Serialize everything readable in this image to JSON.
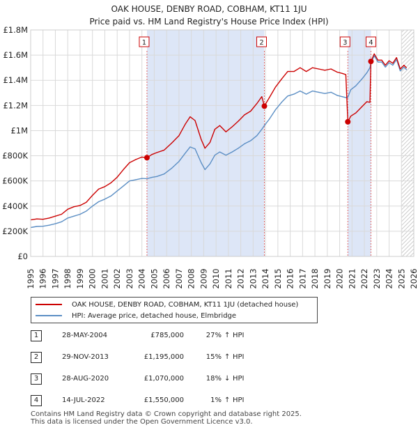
{
  "chart_data": {
    "type": "line",
    "title": "OAK HOUSE, DENBY ROAD, COBHAM, KT11 1JU",
    "subtitle": "Price paid vs. HM Land Registry's House Price Index (HPI)",
    "xlim": [
      1995,
      2026
    ],
    "ylim": [
      0,
      1800000
    ],
    "x_ticks": [
      "1995",
      "1996",
      "1997",
      "1998",
      "1999",
      "2000",
      "2001",
      "2002",
      "2003",
      "2004",
      "2005",
      "2006",
      "2007",
      "2008",
      "2009",
      "2010",
      "2011",
      "2012",
      "2013",
      "2014",
      "2015",
      "2016",
      "2017",
      "2018",
      "2019",
      "2020",
      "2021",
      "2022",
      "2023",
      "2024",
      "2025",
      "2026"
    ],
    "y_ticks": [
      {
        "value": 0,
        "label": "£0"
      },
      {
        "value": 200000,
        "label": "£200K"
      },
      {
        "value": 400000,
        "label": "£400K"
      },
      {
        "value": 600000,
        "label": "£600K"
      },
      {
        "value": 800000,
        "label": "£800K"
      },
      {
        "value": 1000000,
        "label": "£1M"
      },
      {
        "value": 1200000,
        "label": "£1.2M"
      },
      {
        "value": 1400000,
        "label": "£1.4M"
      },
      {
        "value": 1600000,
        "label": "£1.6M"
      },
      {
        "value": 1800000,
        "label": "£1.8M"
      }
    ],
    "colors": {
      "property": "#cc0000",
      "hpi": "#5b8ec4",
      "shade": "#dde6f7",
      "grid": "#d9d9d9"
    },
    "series": [
      {
        "name": "OAK HOUSE, DENBY ROAD, COBHAM, KT11 1JU (detached house)",
        "color": "#cc0000",
        "points": [
          [
            1995.0,
            290000
          ],
          [
            1995.5,
            298000
          ],
          [
            1996.0,
            295000
          ],
          [
            1996.5,
            305000
          ],
          [
            1997.0,
            320000
          ],
          [
            1997.5,
            335000
          ],
          [
            1998.0,
            375000
          ],
          [
            1998.5,
            395000
          ],
          [
            1999.0,
            405000
          ],
          [
            1999.5,
            430000
          ],
          [
            2000.0,
            485000
          ],
          [
            2000.5,
            535000
          ],
          [
            2001.0,
            555000
          ],
          [
            2001.5,
            585000
          ],
          [
            2002.0,
            630000
          ],
          [
            2002.5,
            690000
          ],
          [
            2003.0,
            745000
          ],
          [
            2003.5,
            770000
          ],
          [
            2004.0,
            790000
          ],
          [
            2004.41,
            785000
          ],
          [
            2004.8,
            810000
          ],
          [
            2005.2,
            825000
          ],
          [
            2005.8,
            845000
          ],
          [
            2006.4,
            900000
          ],
          [
            2007.0,
            960000
          ],
          [
            2007.5,
            1050000
          ],
          [
            2007.9,
            1110000
          ],
          [
            2008.3,
            1080000
          ],
          [
            2008.8,
            930000
          ],
          [
            2009.1,
            860000
          ],
          [
            2009.5,
            905000
          ],
          [
            2009.9,
            1010000
          ],
          [
            2010.3,
            1040000
          ],
          [
            2010.8,
            990000
          ],
          [
            2011.3,
            1030000
          ],
          [
            2011.8,
            1075000
          ],
          [
            2012.3,
            1125000
          ],
          [
            2012.8,
            1155000
          ],
          [
            2013.3,
            1215000
          ],
          [
            2013.7,
            1270000
          ],
          [
            2013.91,
            1195000
          ],
          [
            2014.3,
            1260000
          ],
          [
            2014.8,
            1345000
          ],
          [
            2015.3,
            1410000
          ],
          [
            2015.8,
            1470000
          ],
          [
            2016.3,
            1470000
          ],
          [
            2016.8,
            1500000
          ],
          [
            2017.3,
            1470000
          ],
          [
            2017.8,
            1500000
          ],
          [
            2018.3,
            1490000
          ],
          [
            2018.8,
            1480000
          ],
          [
            2019.3,
            1490000
          ],
          [
            2019.8,
            1465000
          ],
          [
            2020.2,
            1455000
          ],
          [
            2020.5,
            1445000
          ],
          [
            2020.66,
            1070000
          ],
          [
            2020.9,
            1115000
          ],
          [
            2021.3,
            1140000
          ],
          [
            2021.8,
            1190000
          ],
          [
            2022.2,
            1230000
          ],
          [
            2022.45,
            1225000
          ],
          [
            2022.53,
            1550000
          ],
          [
            2022.8,
            1610000
          ],
          [
            2023.1,
            1560000
          ],
          [
            2023.4,
            1560000
          ],
          [
            2023.7,
            1520000
          ],
          [
            2024.0,
            1555000
          ],
          [
            2024.3,
            1535000
          ],
          [
            2024.6,
            1580000
          ],
          [
            2024.9,
            1490000
          ],
          [
            2025.2,
            1520000
          ],
          [
            2025.4,
            1500000
          ]
        ]
      },
      {
        "name": "HPI: Average price, detached house, Elmbridge",
        "color": "#5b8ec4",
        "points": [
          [
            1995.0,
            230000
          ],
          [
            1995.5,
            238000
          ],
          [
            1996.0,
            240000
          ],
          [
            1996.5,
            248000
          ],
          [
            1997.0,
            260000
          ],
          [
            1997.5,
            275000
          ],
          [
            1998.0,
            305000
          ],
          [
            1998.5,
            320000
          ],
          [
            1999.0,
            335000
          ],
          [
            1999.5,
            360000
          ],
          [
            2000.0,
            400000
          ],
          [
            2000.5,
            435000
          ],
          [
            2001.0,
            455000
          ],
          [
            2001.5,
            480000
          ],
          [
            2002.0,
            520000
          ],
          [
            2002.5,
            560000
          ],
          [
            2003.0,
            600000
          ],
          [
            2003.5,
            610000
          ],
          [
            2004.0,
            620000
          ],
          [
            2004.41,
            618000
          ],
          [
            2004.8,
            628000
          ],
          [
            2005.2,
            635000
          ],
          [
            2005.8,
            655000
          ],
          [
            2006.4,
            700000
          ],
          [
            2007.0,
            755000
          ],
          [
            2007.5,
            820000
          ],
          [
            2007.9,
            870000
          ],
          [
            2008.3,
            855000
          ],
          [
            2008.8,
            745000
          ],
          [
            2009.1,
            690000
          ],
          [
            2009.5,
            735000
          ],
          [
            2009.9,
            805000
          ],
          [
            2010.3,
            830000
          ],
          [
            2010.8,
            805000
          ],
          [
            2011.3,
            830000
          ],
          [
            2011.8,
            860000
          ],
          [
            2012.3,
            895000
          ],
          [
            2012.8,
            920000
          ],
          [
            2013.3,
            960000
          ],
          [
            2013.7,
            1010000
          ],
          [
            2013.91,
            1040000
          ],
          [
            2014.3,
            1090000
          ],
          [
            2014.8,
            1165000
          ],
          [
            2015.3,
            1225000
          ],
          [
            2015.8,
            1275000
          ],
          [
            2016.3,
            1290000
          ],
          [
            2016.8,
            1315000
          ],
          [
            2017.3,
            1290000
          ],
          [
            2017.8,
            1315000
          ],
          [
            2018.3,
            1305000
          ],
          [
            2018.8,
            1295000
          ],
          [
            2019.3,
            1305000
          ],
          [
            2019.8,
            1280000
          ],
          [
            2020.2,
            1270000
          ],
          [
            2020.5,
            1262000
          ],
          [
            2020.66,
            1265000
          ],
          [
            2020.9,
            1325000
          ],
          [
            2021.3,
            1355000
          ],
          [
            2021.8,
            1410000
          ],
          [
            2022.2,
            1460000
          ],
          [
            2022.45,
            1500000
          ],
          [
            2022.53,
            1535000
          ],
          [
            2022.8,
            1595000
          ],
          [
            2023.1,
            1545000
          ],
          [
            2023.4,
            1545000
          ],
          [
            2023.7,
            1505000
          ],
          [
            2024.0,
            1540000
          ],
          [
            2024.3,
            1520000
          ],
          [
            2024.6,
            1565000
          ],
          [
            2024.9,
            1475000
          ],
          [
            2025.2,
            1505000
          ],
          [
            2025.4,
            1485000
          ]
        ]
      }
    ],
    "shaded_ranges": [
      [
        2004.41,
        2013.91
      ],
      [
        2020.66,
        2022.53
      ]
    ],
    "hatched_range": [
      2025.0,
      2026.0
    ],
    "sales": [
      {
        "id": "1",
        "x": 2004.41,
        "price": 785000
      },
      {
        "id": "2",
        "x": 2013.91,
        "price": 1195000
      },
      {
        "id": "3",
        "x": 2020.66,
        "price": 1070000
      },
      {
        "id": "4",
        "x": 2022.53,
        "price": 1550000
      }
    ]
  },
  "legend": {
    "property_label": "OAK HOUSE, DENBY ROAD, COBHAM, KT11 1JU (detached house)",
    "hpi_label": "HPI: Average price, detached house, Elmbridge"
  },
  "transactions": [
    {
      "num": "1",
      "date": "28-MAY-2004",
      "price": "£785,000",
      "pct": "27%",
      "arrow": "↑",
      "suffix": "HPI"
    },
    {
      "num": "2",
      "date": "29-NOV-2013",
      "price": "£1,195,000",
      "pct": "15%",
      "arrow": "↑",
      "suffix": "HPI"
    },
    {
      "num": "3",
      "date": "28-AUG-2020",
      "price": "£1,070,000",
      "pct": "18%",
      "arrow": "↓",
      "suffix": "HPI"
    },
    {
      "num": "4",
      "date": "14-JUL-2022",
      "price": "£1,550,000",
      "pct": "1%",
      "arrow": "↑",
      "suffix": "HPI"
    }
  ],
  "footer": {
    "line1": "Contains HM Land Registry data © Crown copyright and database right 2025.",
    "line2": "This data is licensed under the Open Government Licence v3.0."
  }
}
